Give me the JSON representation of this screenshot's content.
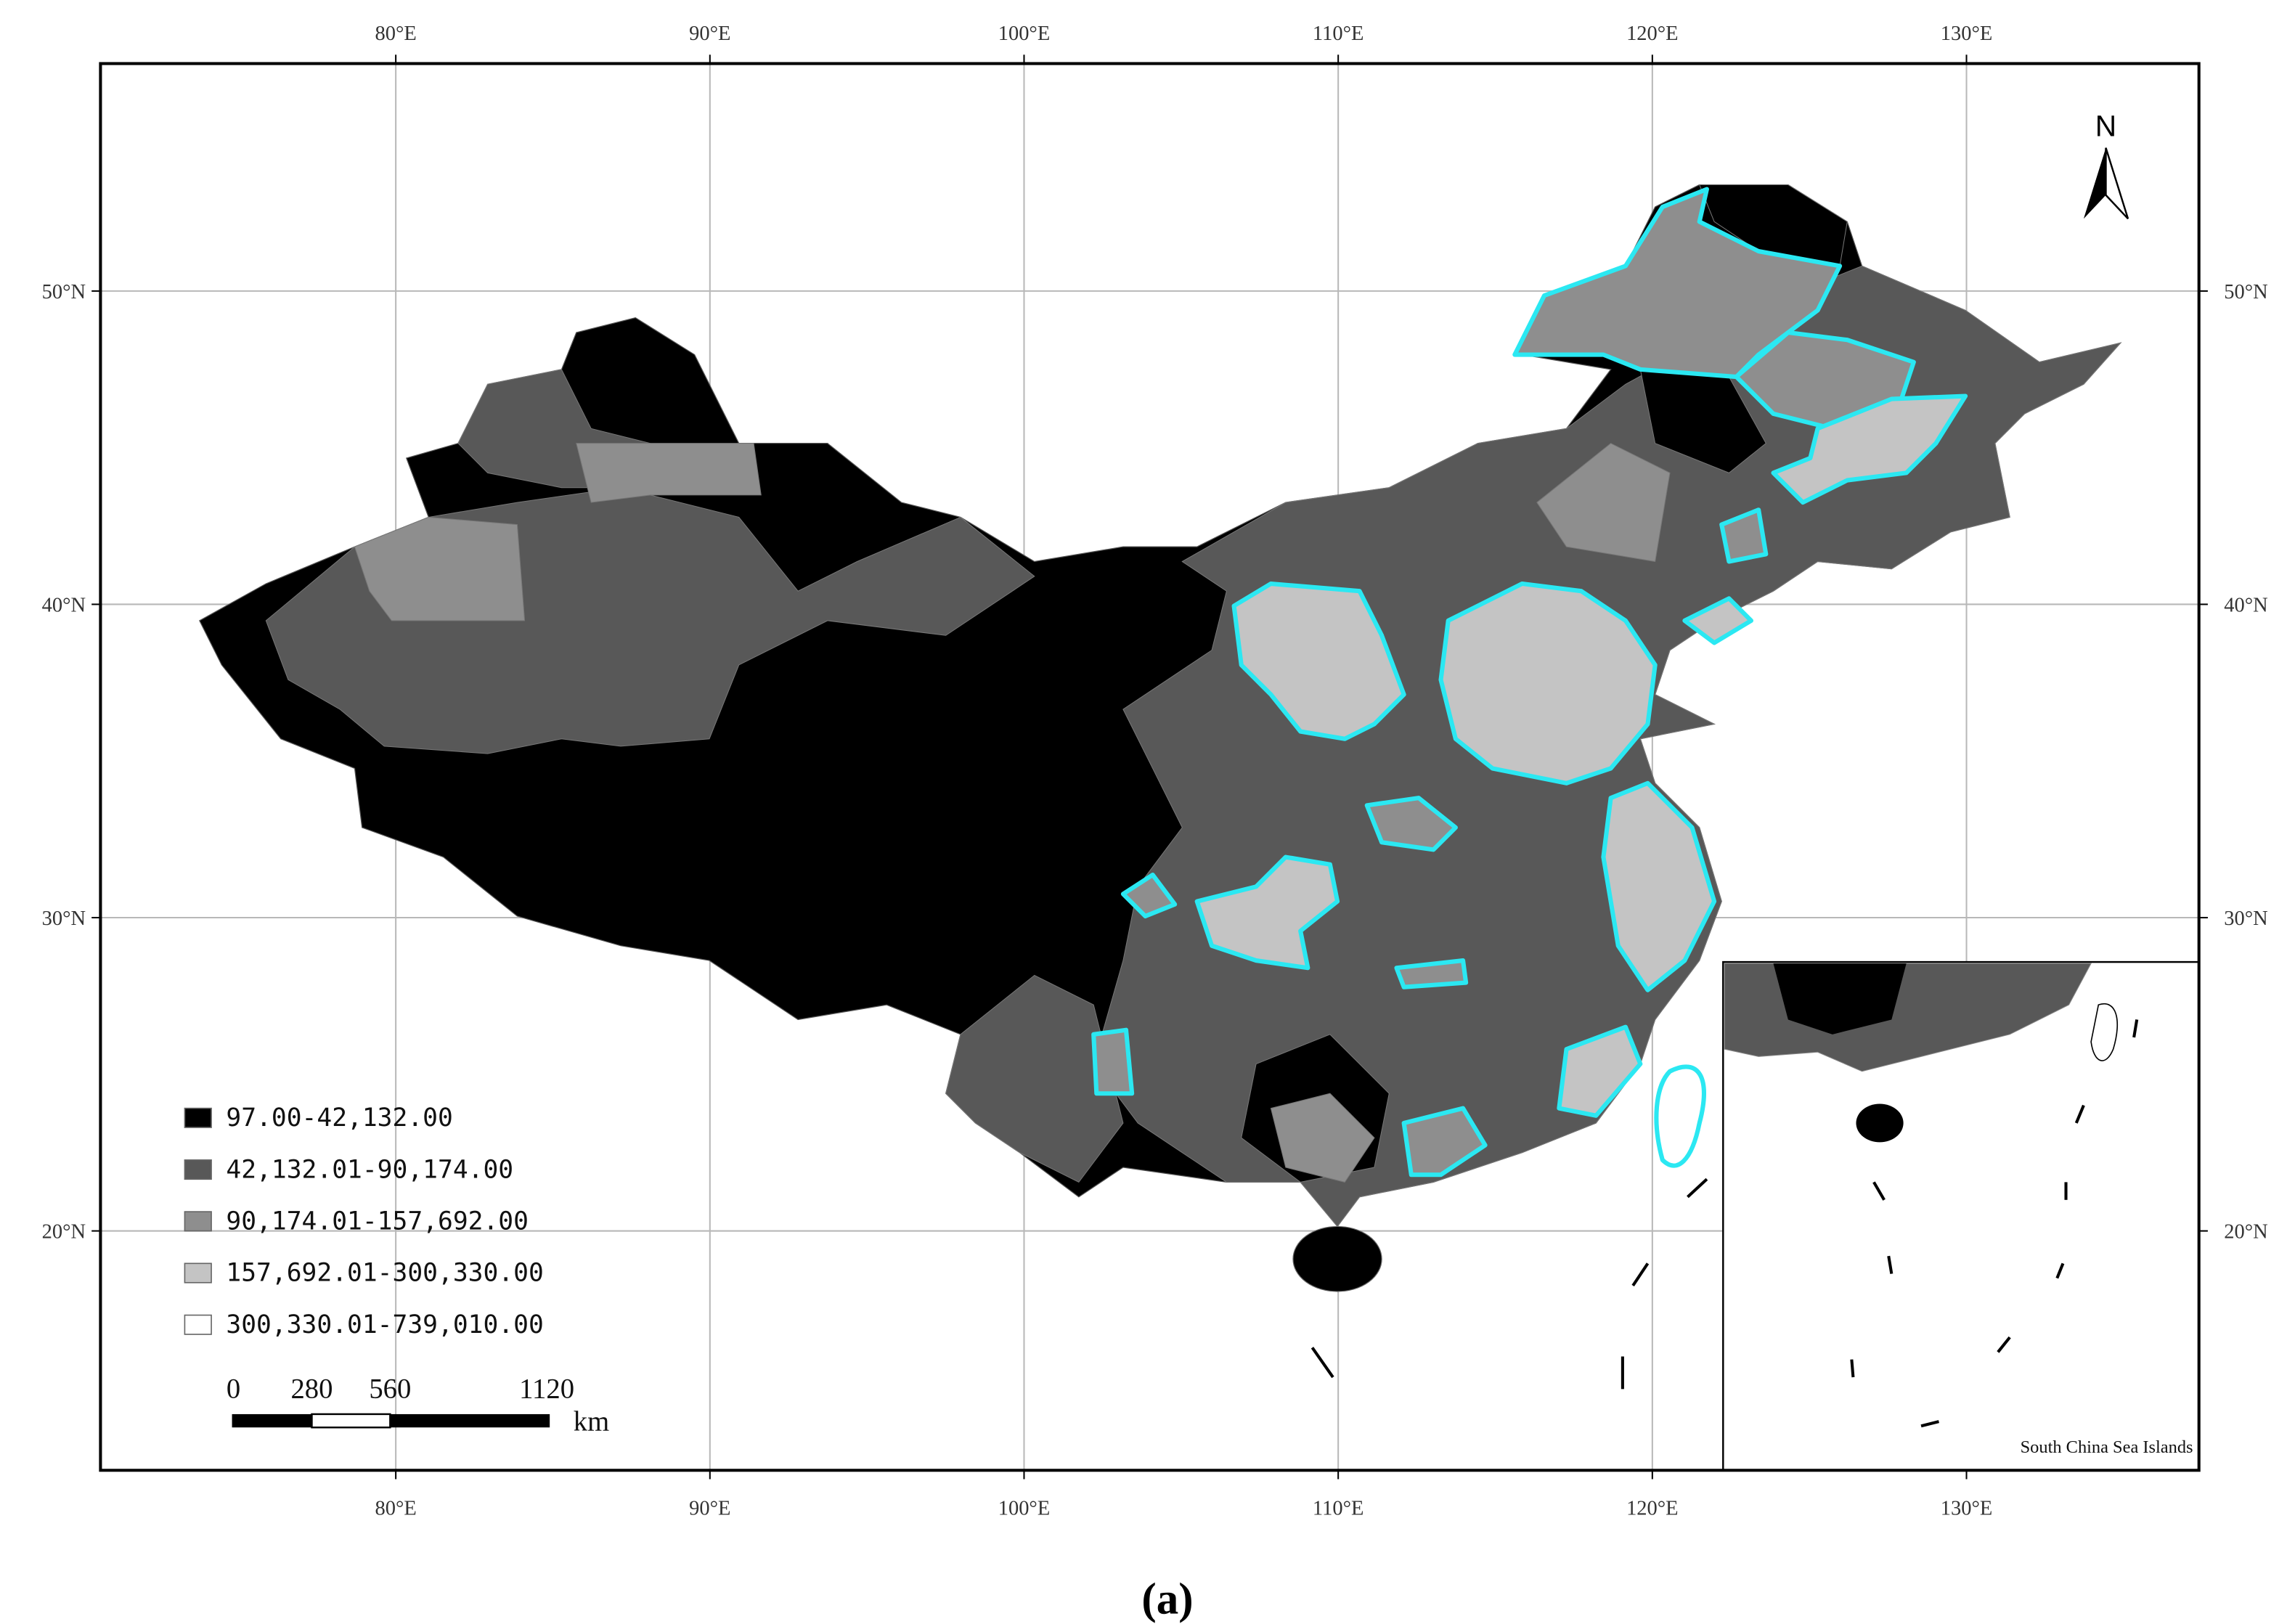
{
  "map": {
    "lon_range": [
      70.6,
      137.4
    ],
    "lat_range": [
      12.36,
      57.26
    ],
    "longitudes": [
      {
        "value": 80,
        "label": "80°E"
      },
      {
        "value": 90,
        "label": "90°E"
      },
      {
        "value": 100,
        "label": "100°E"
      },
      {
        "value": 110,
        "label": "110°E"
      },
      {
        "value": 120,
        "label": "120°E"
      },
      {
        "value": 130,
        "label": "130°E"
      }
    ],
    "latitudes": [
      {
        "value": 50,
        "label": "50°N"
      },
      {
        "value": 40,
        "label": "40°N"
      },
      {
        "value": 30,
        "label": "30°N"
      },
      {
        "value": 20,
        "label": "20°N"
      }
    ],
    "north_label": "N",
    "legend": [
      {
        "label": "97.00-42,132.00",
        "color": "#000000"
      },
      {
        "label": "42,132.01-90,174.00",
        "color": "#585858"
      },
      {
        "label": "90,174.01-157,692.00",
        "color": "#8e8e8e"
      },
      {
        "label": "157,692.01-300,330.00",
        "color": "#c4c4c4"
      },
      {
        "label": "300,330.01-739,010.00",
        "color": "#ffffff"
      }
    ],
    "scale_bar": {
      "labels": [
        "0",
        "280",
        "560",
        "1120"
      ],
      "unit": "km"
    },
    "inset_label": "South China Sea Islands",
    "caption": "(a)"
  }
}
